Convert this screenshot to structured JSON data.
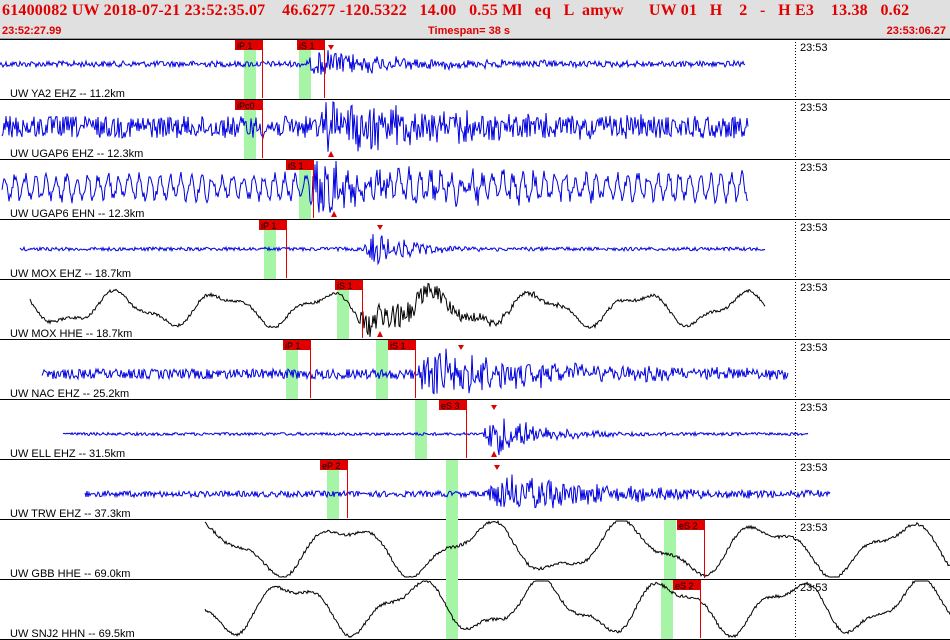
{
  "header": {
    "main_line": "61400082 UW 2018-07-21 23:52:35.07    46.6277 -120.5322   14.00   0.55 Ml   eq   L  amyw      UW 01   H    2   -   H E3    13.38   0.62",
    "start_time": "23:52:27.99",
    "timespan_label": "Timespan=  38 s",
    "end_time": "23:53:06.27"
  },
  "colors": {
    "background": "#ffffff",
    "header_bg": "#e0e0e0",
    "header_text": "#e00000",
    "vertical_trace": "#0000e0",
    "horizontal_trace": "#000000",
    "pick_flag": "#e00000",
    "pick_window": "#a6f5a6",
    "divider": "#000000"
  },
  "traces": [
    {
      "label": "UW YA2 EHZ -- 11.2km",
      "minute": "23:53",
      "color": "blue",
      "start": 0,
      "end": 745,
      "amp": 3,
      "center": 25,
      "event": 320,
      "peak": 13,
      "decay": 90,
      "freq": 1.0,
      "picks": [
        {
          "label": "iP 1",
          "x": 262,
          "win": 250
        },
        {
          "label": "iS 1",
          "x": 324,
          "win": 305
        }
      ],
      "markers": [
        {
          "x": 331,
          "dir": "up"
        }
      ]
    },
    {
      "label": "UW UGAP6 EHZ -- 12.3km",
      "minute": "23:53",
      "color": "blue",
      "start": 2,
      "end": 748,
      "amp": 11,
      "center": 28,
      "event": 330,
      "peak": 22,
      "decay": 130,
      "freq": 1.3,
      "picks": [
        {
          "label": "iPc0",
          "x": 262,
          "win": 250
        }
      ],
      "markers": [
        {
          "x": 331,
          "dir": "down"
        }
      ]
    },
    {
      "label": "UW UGAP6 EHN -- 12.3km",
      "minute": "23:53",
      "color": "blue",
      "start": 2,
      "end": 748,
      "amp": 12,
      "center": 28,
      "event": 318,
      "peak": 20,
      "decay": 160,
      "freq": 0.55,
      "picks": [
        {
          "label": "iS 1",
          "x": 313,
          "win": 305
        }
      ],
      "markers": [
        {
          "x": 334,
          "dir": "down"
        }
      ]
    },
    {
      "label": "UW MOX EHZ -- 18.7km",
      "minute": "23:53",
      "color": "blue",
      "start": 20,
      "end": 765,
      "amp": 1.8,
      "center": 30,
      "event": 375,
      "peak": 16,
      "decay": 40,
      "freq": 1.0,
      "picks": [
        {
          "label": "iP 1",
          "x": 286,
          "win": 270
        }
      ],
      "markers": [
        {
          "x": 380,
          "dir": "up"
        }
      ]
    },
    {
      "label": "UW MOX HHE -- 18.7km",
      "minute": "23:53",
      "color": "black",
      "start": 30,
      "end": 765,
      "amp": 14,
      "center": 30,
      "event": 370,
      "peak": 20,
      "decay": 70,
      "freq": 0.06,
      "picks": [
        {
          "label": "iS 1",
          "x": 362,
          "win": 343
        }
      ],
      "markers": [
        {
          "x": 380,
          "dir": "down"
        }
      ]
    },
    {
      "label": "UW NAC EHZ -- 25.2km",
      "minute": "23:53",
      "color": "blue",
      "start": 42,
      "end": 788,
      "amp": 5,
      "center": 35,
      "event": 430,
      "peak": 24,
      "decay": 120,
      "freq": 1.0,
      "picks": [
        {
          "label": "iP 1",
          "x": 310,
          "win": 292
        },
        {
          "label": "iS 1",
          "x": 415,
          "win": 382
        }
      ],
      "markers": [
        {
          "x": 461,
          "dir": "up"
        }
      ]
    },
    {
      "label": "UW ELL EHZ -- 31.5km",
      "minute": "23:53",
      "color": "blue",
      "start": 63,
      "end": 808,
      "amp": 1.5,
      "center": 35,
      "event": 495,
      "peak": 22,
      "decay": 45,
      "freq": 1.0,
      "picks": [
        {
          "label": "eS 3",
          "x": 466,
          "win": 421
        }
      ],
      "markers": [
        {
          "x": 494,
          "dir": "up"
        },
        {
          "x": 494,
          "dir": "down"
        }
      ]
    },
    {
      "label": "UW TRW EHZ -- 37.3km",
      "minute": "23:53",
      "color": "blue",
      "start": 85,
      "end": 830,
      "amp": 3,
      "center": 35,
      "event": 500,
      "peak": 20,
      "decay": 110,
      "freq": 1.0,
      "picks": [
        {
          "label": "eP 2",
          "x": 347,
          "win": 333
        }
      ],
      "markers": [
        {
          "x": 497,
          "dir": "up"
        }
      ]
    },
    {
      "label": "UW GBB HHE -- 69.0km",
      "minute": "23:53",
      "color": "black",
      "start": 205,
      "end": 950,
      "amp": 22,
      "center": 30,
      "event": 700,
      "peak": 0,
      "decay": 100,
      "freq": 0.045,
      "picks": [
        {
          "label": "eS 2",
          "x": 704,
          "win": 670
        }
      ],
      "markers": []
    },
    {
      "label": "UW SNJ2 HHN -- 69.5km",
      "minute": "23:53",
      "color": "black",
      "start": 205,
      "end": 950,
      "amp": 22,
      "center": 28,
      "event": 700,
      "peak": 0,
      "decay": 100,
      "freq": 0.05,
      "picks": [
        {
          "label": "eS 2",
          "x": 700,
          "win": 667
        }
      ],
      "markers": []
    }
  ],
  "global_windows": [
    {
      "x": 452,
      "top_row": 7
    }
  ]
}
